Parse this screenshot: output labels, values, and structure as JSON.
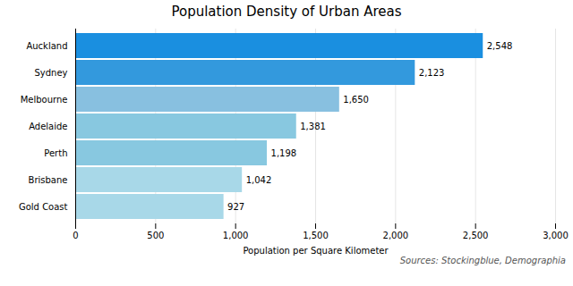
{
  "chart_data": {
    "type": "bar",
    "orientation": "horizontal",
    "title": "Population Density of Urban Areas",
    "xlabel": "Population per Square Kilometer",
    "annotations": [
      "Sources: Stockingblue, Demographia"
    ],
    "categories": [
      "Gold Coast",
      "Brisbane",
      "Perth",
      "Adelaide",
      "Melbourne",
      "Sydney",
      "Auckland"
    ],
    "values": [
      927,
      1042,
      1198,
      1381,
      1650,
      2123,
      2548
    ],
    "value_labels": [
      "927",
      "1,042",
      "1,198",
      "1,381",
      "1,650",
      "2,123",
      "2,548"
    ],
    "data_labels": true,
    "colors": [
      "#a8d8e8",
      "#a8d8e8",
      "#88c8e0",
      "#88c8e0",
      "#88c0e0",
      "#3399dd",
      "#1a8fe0"
    ],
    "xlim": [
      0,
      3000
    ],
    "xticks": [
      0,
      500,
      {
        "value": 1000,
        "label": "1,000"
      },
      {
        "value": 1500,
        "label": "1,500"
      },
      {
        "value": 2000,
        "label": "2,000"
      },
      {
        "value": 2500,
        "label": "2,500"
      },
      {
        "value": 3000,
        "label": "3,000"
      }
    ],
    "grid": true
  }
}
